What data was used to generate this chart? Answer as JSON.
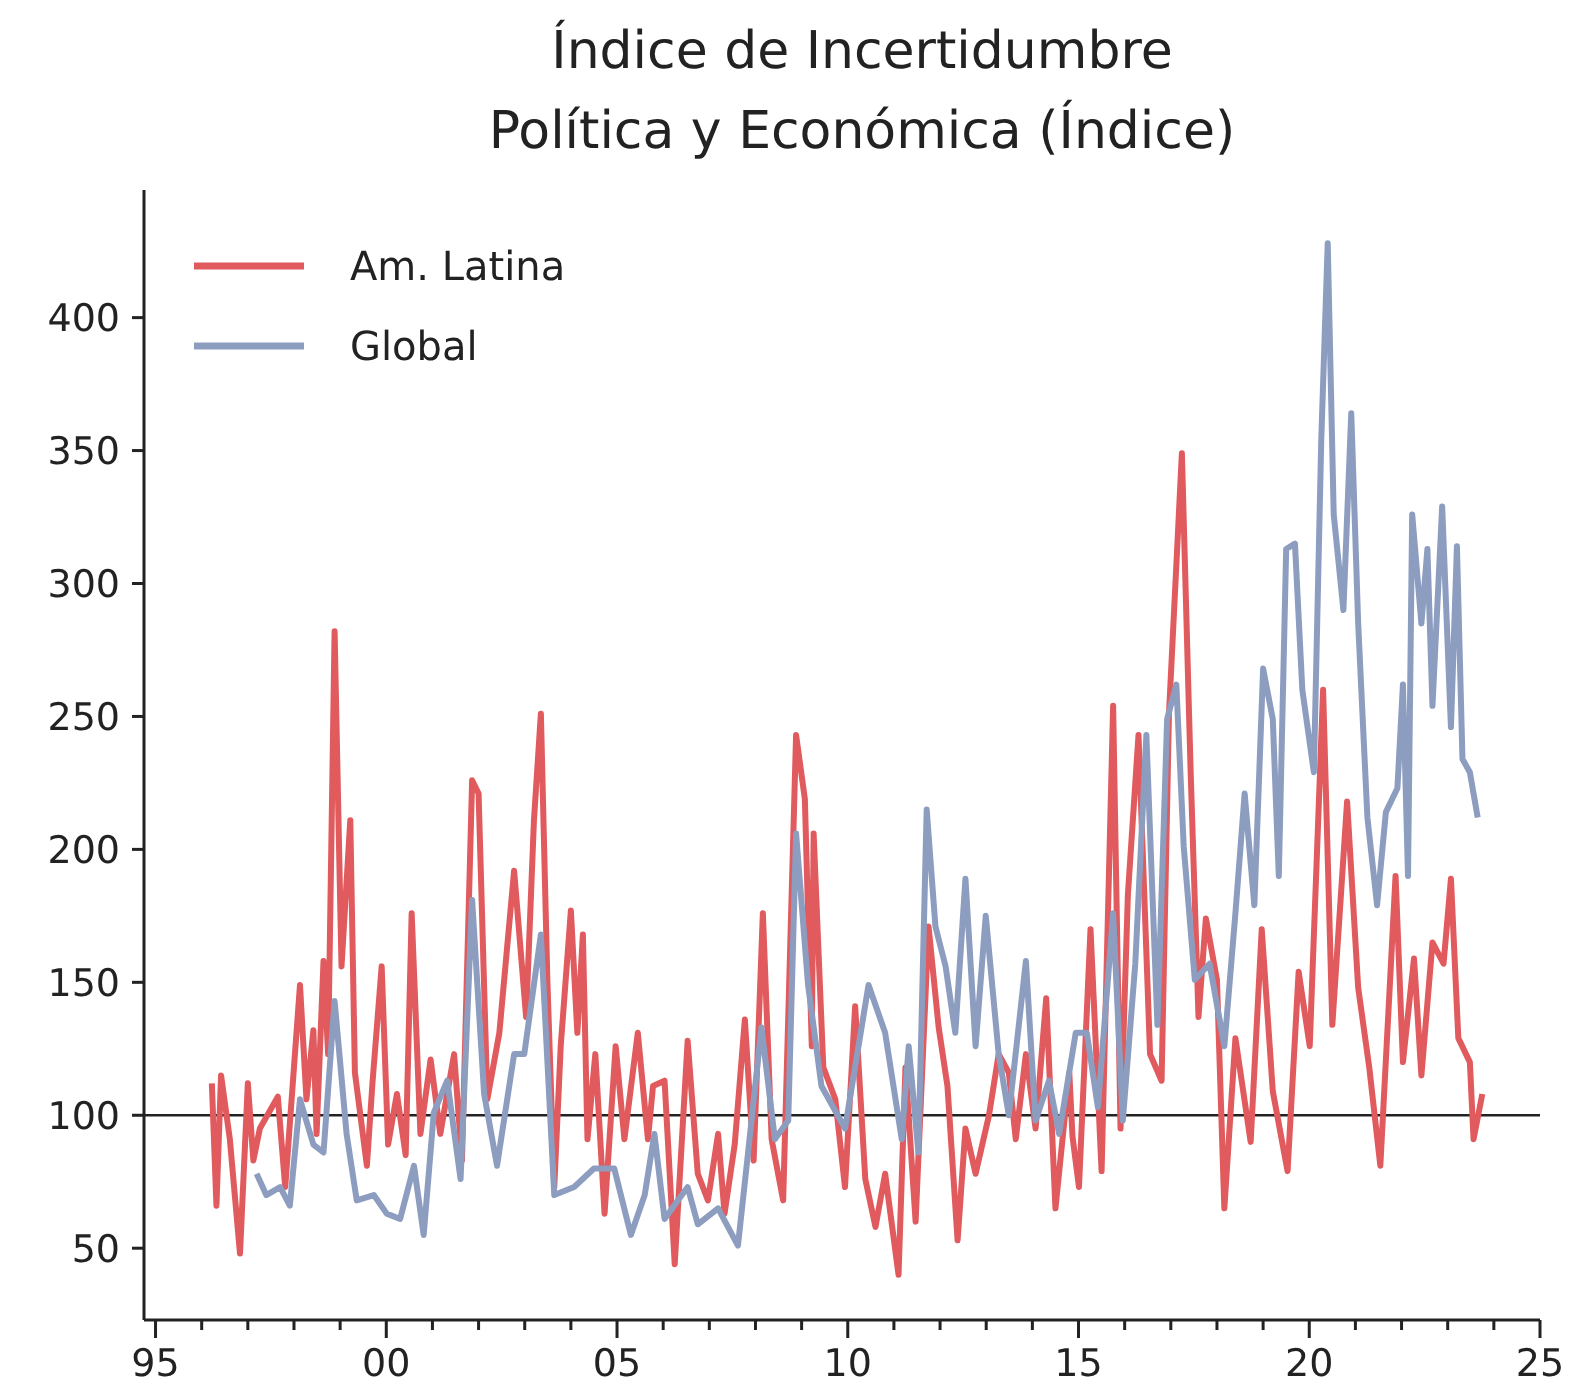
{
  "chart_data": {
    "type": "line",
    "title": "Índice de Incertidumbre\nPolítica y Económica (Índice)",
    "xlim": [
      1994.75,
      2025
    ],
    "xticks": [
      {
        "value": 1995,
        "label": "95"
      },
      {
        "value": 1996,
        "label": null
      },
      {
        "value": 1997,
        "label": null
      },
      {
        "value": 1998,
        "label": null
      },
      {
        "value": 1999,
        "label": null
      },
      {
        "value": 2000,
        "label": "00"
      },
      {
        "value": 2001,
        "label": null
      },
      {
        "value": 2002,
        "label": null
      },
      {
        "value": 2003,
        "label": null
      },
      {
        "value": 2004,
        "label": null
      },
      {
        "value": 2005,
        "label": "05"
      },
      {
        "value": 2006,
        "label": null
      },
      {
        "value": 2007,
        "label": null
      },
      {
        "value": 2008,
        "label": null
      },
      {
        "value": 2009,
        "label": null
      },
      {
        "value": 2010,
        "label": "10"
      },
      {
        "value": 2011,
        "label": null
      },
      {
        "value": 2012,
        "label": null
      },
      {
        "value": 2013,
        "label": null
      },
      {
        "value": 2014,
        "label": null
      },
      {
        "value": 2015,
        "label": "15"
      },
      {
        "value": 2016,
        "label": null
      },
      {
        "value": 2017,
        "label": null
      },
      {
        "value": 2018,
        "label": null
      },
      {
        "value": 2019,
        "label": null
      },
      {
        "value": 2020,
        "label": "20"
      },
      {
        "value": 2021,
        "label": null
      },
      {
        "value": 2022,
        "label": null
      },
      {
        "value": 2023,
        "label": null
      },
      {
        "value": 2024,
        "label": null
      },
      {
        "value": 2025,
        "label": "25"
      }
    ],
    "ylim": [
      23,
      448
    ],
    "yticks": [
      50,
      100,
      150,
      200,
      250,
      300,
      350,
      400
    ],
    "grid": false,
    "legend": "top left",
    "marker": "none",
    "line_style": "solid",
    "ref_lines": [
      {
        "axis": "y",
        "value": 100,
        "color": "#222222"
      }
    ],
    "series": [
      {
        "name": "Am. Latina",
        "color": "#e05a5e",
        "x": [
          1996.22,
          1996.32,
          1996.42,
          1996.61,
          1996.83,
          1997.0,
          1997.12,
          1997.26,
          1997.65,
          1997.81,
          1998.13,
          1998.27,
          1998.42,
          1998.49,
          1998.64,
          1998.74,
          1998.88,
          1999.03,
          1999.22,
          1999.32,
          1999.58,
          1999.7,
          1999.9,
          2000.04,
          2000.23,
          2000.42,
          2000.55,
          2000.74,
          2000.96,
          2001.17,
          2001.47,
          2001.64,
          2001.86,
          2002.0,
          2002.19,
          2002.45,
          2002.77,
          2003.03,
          2003.2,
          2003.35,
          2003.49,
          2003.64,
          2003.78,
          2004.0,
          2004.14,
          2004.26,
          2004.36,
          2004.53,
          2004.73,
          2004.97,
          2005.16,
          2005.45,
          2005.67,
          2005.78,
          2006.03,
          2006.25,
          2006.53,
          2006.75,
          2006.97,
          2007.19,
          2007.33,
          2007.55,
          2007.77,
          2007.96,
          2008.16,
          2008.35,
          2008.6,
          2008.88,
          2009.07,
          2009.22,
          2009.26,
          2009.47,
          2009.73,
          2009.94,
          2010.16,
          2010.38,
          2010.6,
          2010.81,
          2011.1,
          2011.25,
          2011.47,
          2011.75,
          2011.97,
          2012.16,
          2012.38,
          2012.55,
          2012.77,
          2013.06,
          2013.27,
          2013.49,
          2013.64,
          2013.86,
          2014.07,
          2014.3,
          2014.5,
          2014.8,
          2014.87,
          2015.01,
          2015.26,
          2015.5,
          2015.75,
          2015.91,
          2016.07,
          2016.3,
          2016.55,
          2016.8,
          2016.96,
          2017.24,
          2017.43,
          2017.6,
          2017.76,
          2018.0,
          2018.16,
          2018.4,
          2018.73,
          2018.97,
          2019.21,
          2019.53,
          2019.77,
          2020.01,
          2020.3,
          2020.5,
          2020.82,
          2021.06,
          2021.3,
          2021.54,
          2021.87,
          2022.03,
          2022.27,
          2022.43,
          2022.67,
          2022.91,
          2023.07,
          2023.23,
          2023.48,
          2023.56,
          2023.75
        ],
        "values": [
          112,
          66,
          115,
          91,
          48,
          112,
          83,
          95,
          107,
          73,
          149,
          106,
          132,
          93,
          158,
          123,
          282,
          156,
          211,
          116,
          81,
          112,
          156,
          89,
          108,
          85,
          176,
          93,
          121,
          93,
          123,
          83,
          226,
          221,
          106,
          131,
          192,
          137,
          211,
          251,
          151,
          73,
          126,
          177,
          131,
          168,
          91,
          123,
          63,
          126,
          91,
          131,
          91,
          111,
          113,
          44,
          128,
          78,
          68,
          93,
          63,
          89,
          136,
          83,
          176,
          91,
          68,
          243,
          219,
          126,
          206,
          118,
          106,
          73,
          141,
          76,
          58,
          78,
          40,
          118,
          60,
          171,
          133,
          111,
          53,
          95,
          78,
          100,
          123,
          116,
          91,
          123,
          95,
          144,
          65,
          116,
          92,
          73,
          170,
          79,
          254,
          95,
          183,
          243,
          123,
          113,
          251,
          349,
          229,
          137,
          174,
          151,
          65,
          129,
          90,
          170,
          109,
          79,
          154,
          126,
          260,
          134,
          218,
          148,
          118,
          81,
          190,
          120,
          159,
          115,
          165,
          157,
          189,
          129,
          120,
          91,
          108
        ]
      },
      {
        "name": "Global",
        "color": "#8d9dc0",
        "x": [
          1997.19,
          1997.4,
          1997.7,
          1997.91,
          1998.13,
          1998.42,
          1998.64,
          1998.88,
          1999.14,
          1999.36,
          1999.73,
          2000.01,
          2000.3,
          2000.6,
          2000.81,
          2001.03,
          2001.32,
          2001.61,
          2001.86,
          2002.12,
          2002.4,
          2002.77,
          2002.99,
          2003.35,
          2003.64,
          2004.07,
          2004.5,
          2004.94,
          2005.3,
          2005.6,
          2005.81,
          2006.03,
          2006.53,
          2006.75,
          2007.19,
          2007.62,
          2007.84,
          2008.13,
          2008.42,
          2008.71,
          2008.88,
          2009.14,
          2009.43,
          2009.94,
          2010.45,
          2010.81,
          2011.17,
          2011.32,
          2011.53,
          2011.71,
          2011.9,
          2012.12,
          2012.33,
          2012.55,
          2012.77,
          2012.99,
          2013.27,
          2013.49,
          2013.86,
          2014.07,
          2014.36,
          2014.58,
          2014.94,
          2015.18,
          2015.42,
          2015.75,
          2015.96,
          2016.23,
          2016.47,
          2016.71,
          2016.92,
          2017.12,
          2017.28,
          2017.52,
          2017.84,
          2018.16,
          2018.4,
          2018.6,
          2018.81,
          2019.0,
          2019.21,
          2019.34,
          2019.5,
          2019.69,
          2019.85,
          2020.1,
          2020.26,
          2020.4,
          2020.53,
          2020.74,
          2020.91,
          2021.06,
          2021.26,
          2021.47,
          2021.66,
          2021.91,
          2022.03,
          2022.14,
          2022.23,
          2022.43,
          2022.56,
          2022.67,
          2022.88,
          2023.07,
          2023.2,
          2023.32,
          2023.48,
          2023.65
        ],
        "values": [
          78,
          70,
          73,
          66,
          106,
          89,
          86,
          143,
          93,
          68,
          70,
          63,
          61,
          81,
          55,
          101,
          113,
          76,
          181,
          108,
          81,
          123,
          123,
          168,
          70,
          73,
          80,
          80,
          55,
          70,
          93,
          61,
          73,
          59,
          65,
          51,
          86,
          133,
          91,
          98,
          206,
          149,
          111,
          95,
          149,
          131,
          91,
          126,
          86,
          215,
          171,
          156,
          131,
          189,
          126,
          175,
          123,
          100,
          158,
          98,
          113,
          93,
          131,
          131,
          103,
          176,
          98,
          157,
          243,
          134,
          249,
          262,
          201,
          151,
          157,
          126,
          176,
          221,
          179,
          268,
          249,
          190,
          313,
          315,
          260,
          229,
          354,
          428,
          326,
          290,
          364,
          285,
          212,
          179,
          214,
          223,
          262,
          190,
          326,
          285,
          313,
          254,
          329,
          246,
          314,
          234,
          229,
          212
        ]
      }
    ]
  }
}
